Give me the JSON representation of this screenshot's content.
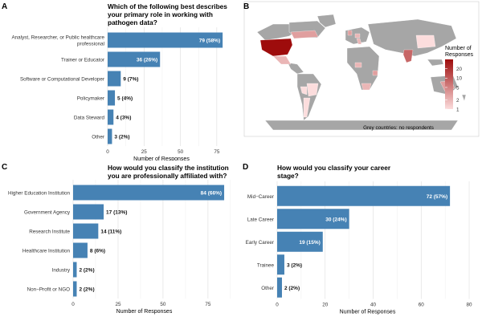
{
  "colors": {
    "bar": "#4682b4",
    "grid": "#dddddd",
    "panel_border": "#cccccc",
    "land_grey": "#a6a6a6"
  },
  "chart_data": [
    {
      "panel": "A",
      "type": "bar",
      "orientation": "horizontal",
      "title": "Which of the following best describes your primary role in working with pathogen data?",
      "title_lines": [
        "Which of the following best describes",
        "your primary role in working with",
        "pathogen data?"
      ],
      "categories": [
        "Analyst, Researcher, or Public healthcare professional",
        "Trainer or Educator",
        "Software or Computational Developer",
        "Policymaker",
        "Data Steward",
        "Other"
      ],
      "category_lines": [
        [
          "Analyst, Researcher, or Public healthcare",
          "professional"
        ],
        [
          "Trainer or Educator"
        ],
        [
          "Software or Computational Developer"
        ],
        [
          "Policymaker"
        ],
        [
          "Data Steward"
        ],
        [
          "Other"
        ]
      ],
      "values": [
        79,
        36,
        9,
        5,
        4,
        3
      ],
      "labels": [
        "79 (58%)",
        "36 (26%)",
        "9 (7%)",
        "5 (4%)",
        "4 (3%)",
        "3 (2%)"
      ],
      "xlabel": "Number of Responses",
      "xlim": [
        0,
        85
      ],
      "xticks": [
        0,
        25,
        50,
        75
      ]
    },
    {
      "panel": "B",
      "type": "map",
      "legend_title_lines": [
        "Number of",
        "Responses"
      ],
      "legend_ticks": [
        20,
        10,
        5,
        2,
        1
      ],
      "legend_range": [
        1,
        40
      ],
      "note": "Grey countries: no respondents",
      "regions": [
        {
          "name": "United States",
          "value": 40
        },
        {
          "name": "Canada",
          "value": 3
        },
        {
          "name": "Mexico",
          "value": 2
        },
        {
          "name": "Brazil",
          "value": 1
        },
        {
          "name": "Peru",
          "value": 1
        },
        {
          "name": "Argentina",
          "value": 1
        },
        {
          "name": "United Kingdom",
          "value": 3
        },
        {
          "name": "Germany",
          "value": 2
        },
        {
          "name": "Italy",
          "value": 2
        },
        {
          "name": "India",
          "value": 8
        },
        {
          "name": "Kenya",
          "value": 3
        },
        {
          "name": "Nigeria",
          "value": 2
        },
        {
          "name": "South Africa",
          "value": 2
        },
        {
          "name": "China",
          "value": 1
        },
        {
          "name": "Australia",
          "value": 3
        }
      ]
    },
    {
      "panel": "C",
      "type": "bar",
      "orientation": "horizontal",
      "title": "How would you classify the institution you are professionally affiliated with?",
      "title_lines": [
        "How would you classify the institution",
        "you are professionally affiliated with?"
      ],
      "categories": [
        "Higher Education Institution",
        "Government Agency",
        "Research Institute",
        "Healthcare Institution",
        "Industry",
        "Non−Profit or NGO"
      ],
      "category_lines": [
        [
          "Higher Education Institution"
        ],
        [
          "Government Agency"
        ],
        [
          "Research Institute"
        ],
        [
          "Healthcare Institution"
        ],
        [
          "Industry"
        ],
        [
          "Non−Profit or NGO"
        ]
      ],
      "values": [
        84,
        17,
        14,
        8,
        2,
        2
      ],
      "labels": [
        "84 (66%)",
        "17 (13%)",
        "14 (11%)",
        "8 (6%)",
        "2 (2%)",
        "2 (2%)"
      ],
      "xlabel": "Number of Responses",
      "xlim": [
        0,
        88
      ],
      "xticks": [
        0,
        25,
        50,
        75
      ]
    },
    {
      "panel": "D",
      "type": "bar",
      "orientation": "horizontal",
      "title": "How would you classify your career stage?",
      "title_lines": [
        "How would you classify your career",
        "stage?"
      ],
      "categories": [
        "Mid−Career",
        "Late Career",
        "Early Career",
        "Trainee",
        "Other"
      ],
      "category_lines": [
        [
          "Mid−Career"
        ],
        [
          "Late Career"
        ],
        [
          "Early Career"
        ],
        [
          "Trainee"
        ],
        [
          "Other"
        ]
      ],
      "values": [
        72,
        30,
        19,
        3,
        2
      ],
      "labels": [
        "72 (57%)",
        "30 (24%)",
        "19 (15%)",
        "3 (2%)",
        "2 (2%)"
      ],
      "xlabel": "Number of Responses",
      "xlim": [
        0,
        82
      ],
      "xticks": [
        0,
        20,
        40,
        60,
        80
      ]
    }
  ]
}
